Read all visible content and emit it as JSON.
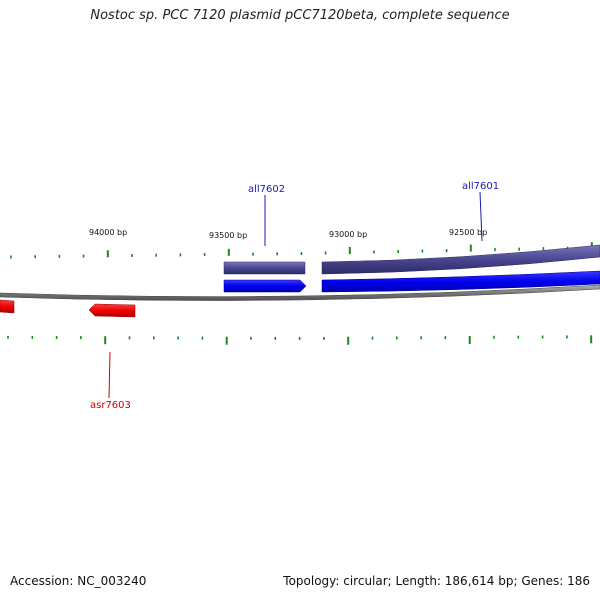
{
  "title": "Nostoc sp. PCC 7120 plasmid pCC7120beta, complete sequence",
  "footer": {
    "accession": "Accession: NC_003240",
    "summary": "Topology: circular; Length: 186,614 bp; Genes: 186"
  },
  "scale_labels": [
    {
      "id": "94000",
      "text": "94000 bp"
    },
    {
      "id": "93500",
      "text": "93500 bp"
    },
    {
      "id": "93000",
      "text": "93000 bp"
    },
    {
      "id": "92500",
      "text": "92500 bp"
    }
  ],
  "genes": [
    {
      "id": "all7602",
      "label": "all7602",
      "color": "#1a1ab0"
    },
    {
      "id": "all7601",
      "label": "all7601",
      "color": "#1a1ab0"
    },
    {
      "id": "asr7603",
      "label": "asr7603",
      "color": "#cc0000"
    }
  ],
  "colors": {
    "backbone": "#808080",
    "gene_forward_dark": "#4a4690",
    "gene_forward_blue": "#0000ee",
    "gene_reverse": "#ee0000",
    "tick": "#1a8a1a"
  }
}
